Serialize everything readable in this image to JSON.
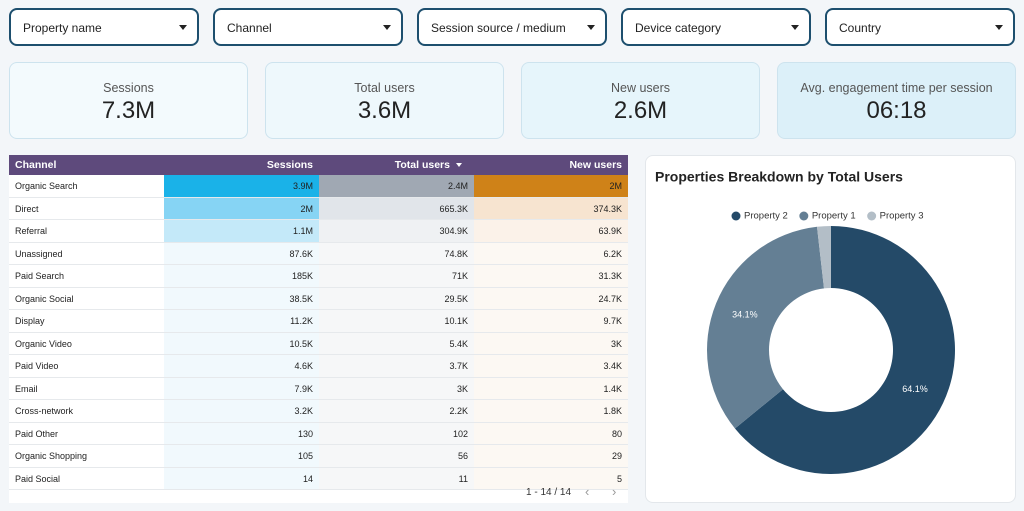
{
  "filters": [
    "Property name",
    "Channel",
    "Session source / medium",
    "Device category",
    "Country"
  ],
  "scorecards": [
    {
      "label": "Sessions",
      "value": "7.3M"
    },
    {
      "label": "Total users",
      "value": "3.6M"
    },
    {
      "label": "New users",
      "value": "2.6M"
    },
    {
      "label": "Avg. engagement time per session",
      "value": "06:18"
    }
  ],
  "table": {
    "columns": [
      "Channel",
      "Sessions",
      "Total users",
      "New users"
    ],
    "rows": [
      [
        "Organic Search",
        "3.9M",
        "2.4M",
        "2M"
      ],
      [
        "Direct",
        "2M",
        "665.3K",
        "374.3K"
      ],
      [
        "Referral",
        "1.1M",
        "304.9K",
        "63.9K"
      ],
      [
        "Unassigned",
        "87.6K",
        "74.8K",
        "6.2K"
      ],
      [
        "Paid Search",
        "185K",
        "71K",
        "31.3K"
      ],
      [
        "Organic Social",
        "38.5K",
        "29.5K",
        "24.7K"
      ],
      [
        "Display",
        "11.2K",
        "10.1K",
        "9.7K"
      ],
      [
        "Organic Video",
        "10.5K",
        "5.4K",
        "3K"
      ],
      [
        "Paid Video",
        "4.6K",
        "3.7K",
        "3.4K"
      ],
      [
        "Email",
        "7.9K",
        "3K",
        "1.4K"
      ],
      [
        "Cross-network",
        "3.2K",
        "2.2K",
        "1.8K"
      ],
      [
        "Paid Other",
        "130",
        "102",
        "80"
      ],
      [
        "Organic Shopping",
        "105",
        "56",
        "29"
      ],
      [
        "Paid Social",
        "14",
        "11",
        "5"
      ]
    ],
    "pagination": "1 - 14 / 14"
  },
  "chart_data": {
    "type": "pie",
    "donut": true,
    "title": "Properties Breakdown by Total Users",
    "categories": [
      "Property 2",
      "Property 1",
      "Property 3"
    ],
    "values": [
      64.1,
      34.1,
      1.8
    ],
    "value_labels": [
      "64.1%",
      "34.1%",
      null
    ],
    "colors": [
      "#244a68",
      "#647f94",
      "#b3bec7"
    ],
    "legend": "top"
  }
}
